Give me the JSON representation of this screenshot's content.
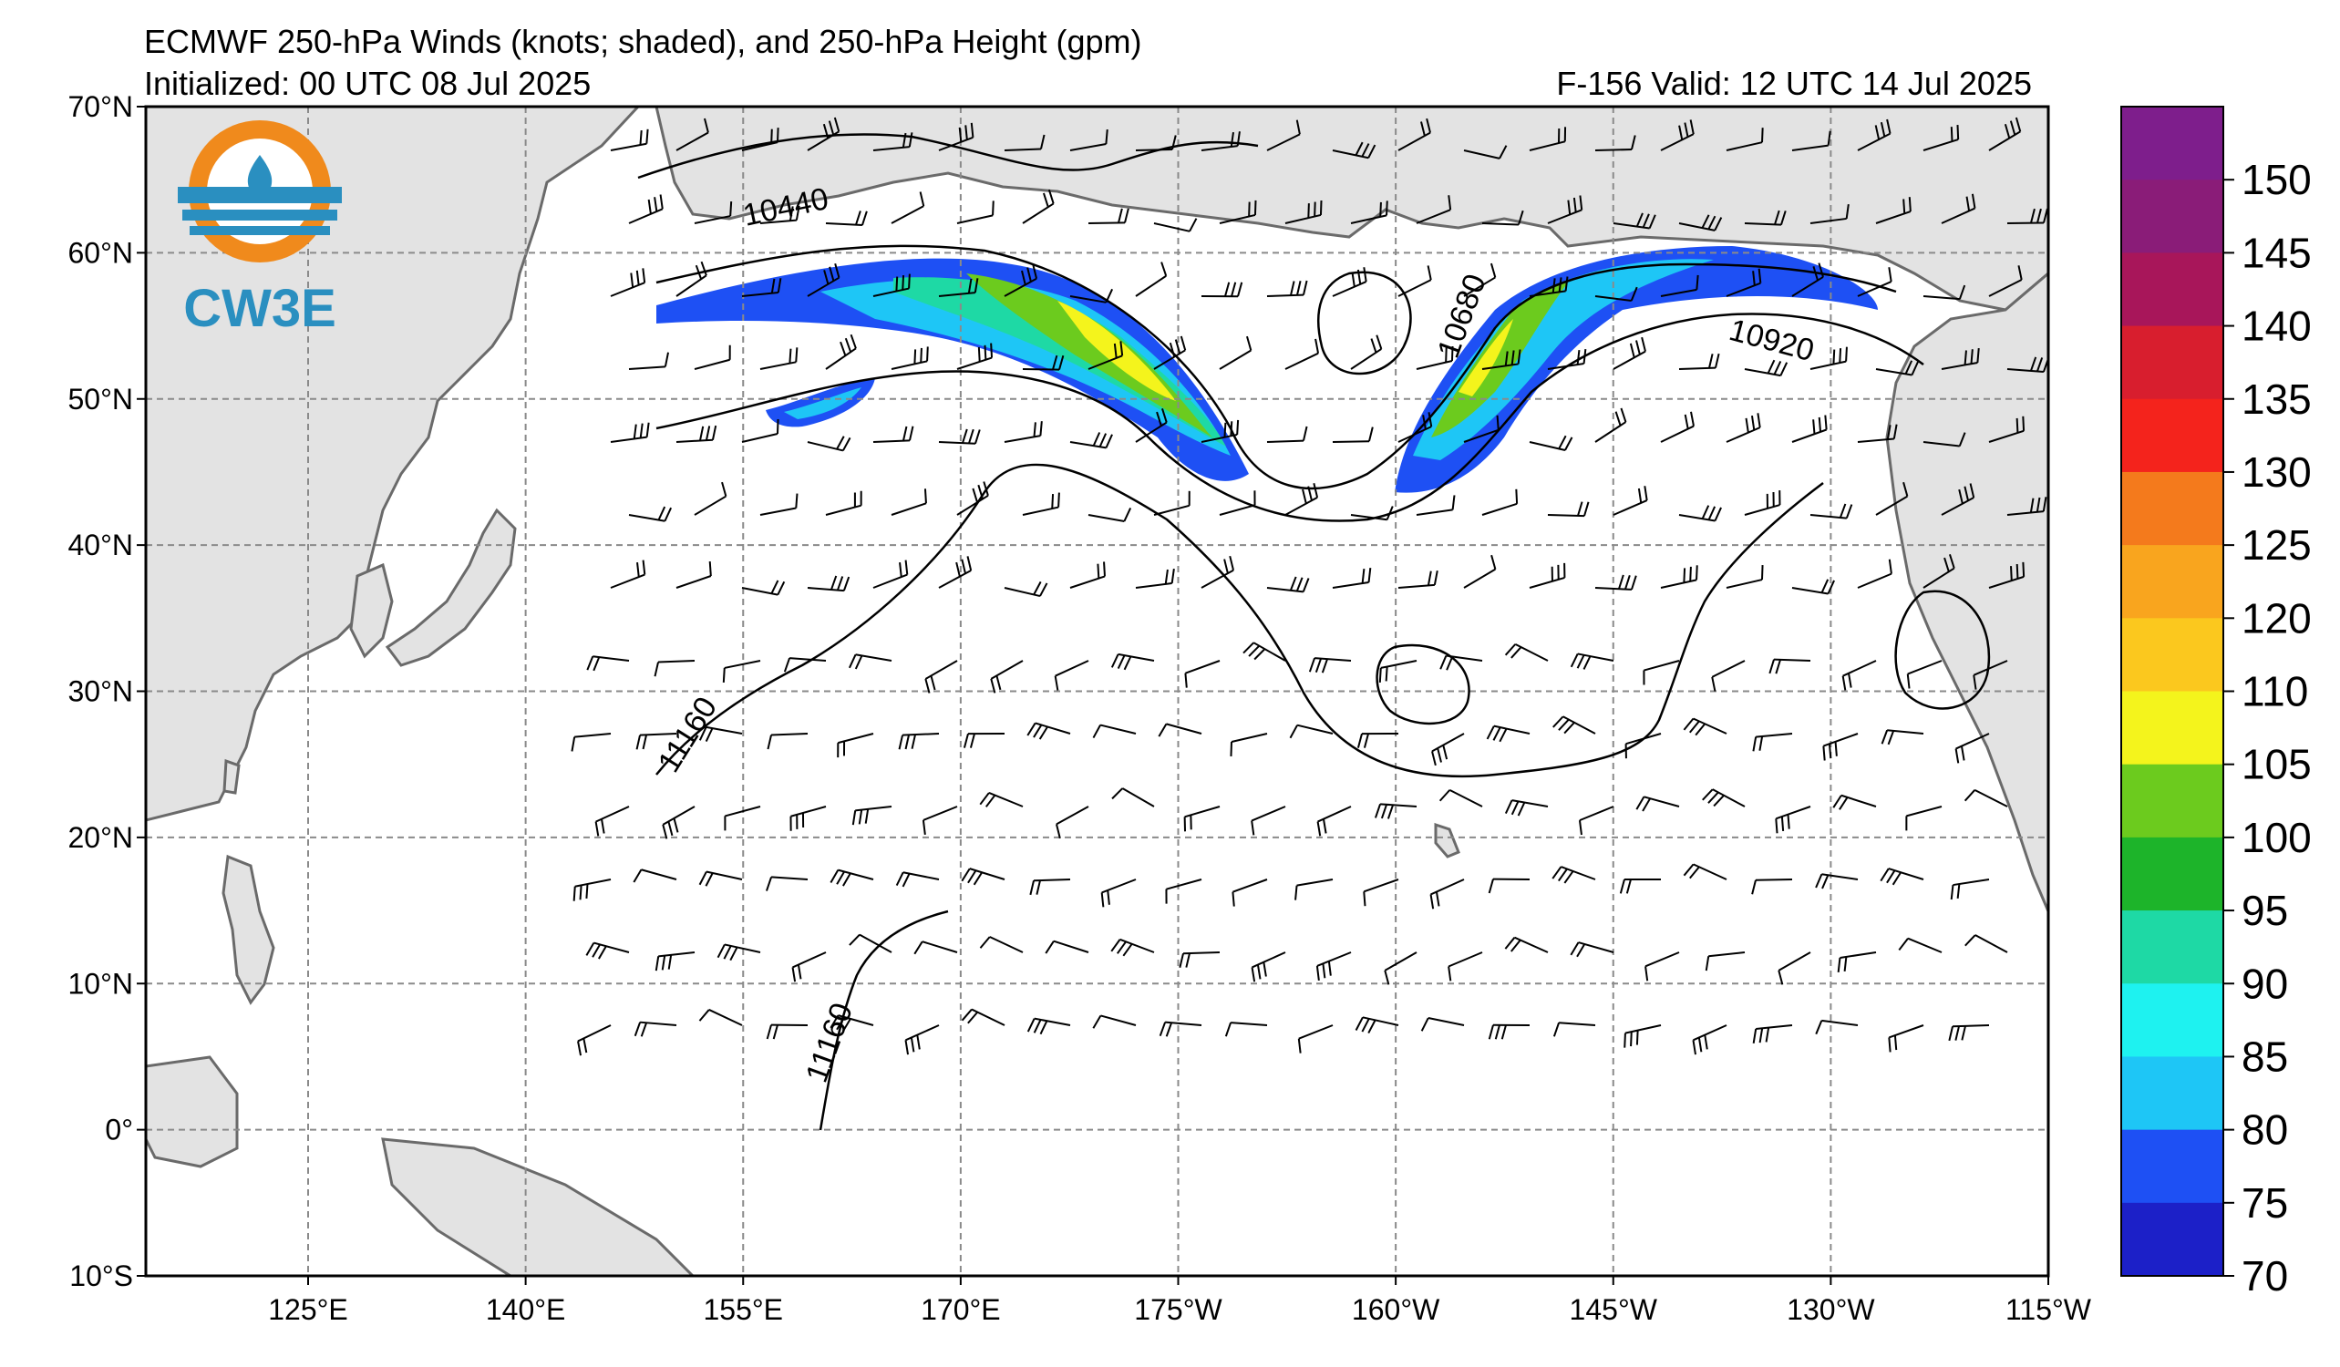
{
  "header": {
    "title": "ECMWF 250-hPa Winds (knots; shaded), and 250-hPa Height (gpm)",
    "initialized": "Initialized: 00 UTC 08 Jul 2025",
    "valid": "F-156  Valid: 12 UTC 14 Jul 2025"
  },
  "logo": {
    "text": "CW3E",
    "colors": {
      "orange": "#f08a1c",
      "blue": "#2a8fc0"
    }
  },
  "map": {
    "lat_labels": [
      "70°N",
      "60°N",
      "50°N",
      "40°N",
      "30°N",
      "20°N",
      "10°N",
      "0°",
      "10°S"
    ],
    "lon_labels": [
      "125°E",
      "140°E",
      "155°E",
      "170°E",
      "175°W",
      "160°W",
      "145°W",
      "130°W",
      "115°W"
    ],
    "contour_labels": [
      "10440",
      "10680",
      "10920",
      "11160",
      "11160"
    ],
    "colors": {
      "land": "#e3e3e3",
      "coast": "#6a6a6a",
      "grid": "#8a8a8a"
    }
  },
  "colorbar": {
    "labels": [
      "150",
      "145",
      "140",
      "135",
      "130",
      "125",
      "120",
      "110",
      "105",
      "100",
      "95",
      "90",
      "85",
      "80",
      "75",
      "70"
    ],
    "colors_top_to_bottom": [
      "#7e1e8c",
      "#8a1c78",
      "#a8165a",
      "#d81e2e",
      "#f4231c",
      "#f47a1c",
      "#f9a51e",
      "#fbc81e",
      "#f4f41c",
      "#6ccb1e",
      "#1db42a",
      "#1ed9a5",
      "#1ef2f0",
      "#1ec6f6",
      "#1e50f4",
      "#1c20c8"
    ]
  }
}
